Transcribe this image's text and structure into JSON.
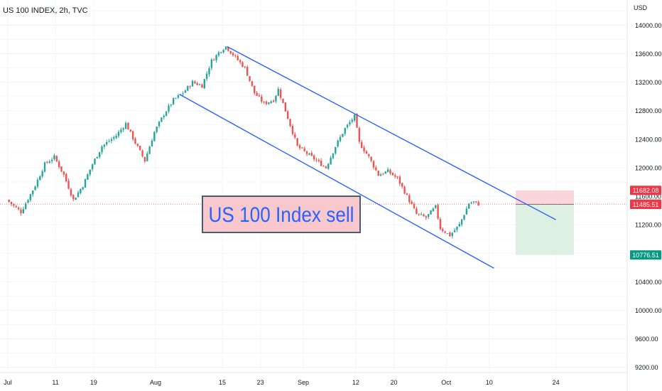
{
  "header": {
    "symbol_title": "US 100 INDEX, 2h, TVC"
  },
  "chart_data": {
    "type": "candlestick",
    "title": "US 100 INDEX, 2h, TVC",
    "currency": "USD",
    "timeframe": "2h",
    "grid": true,
    "y_axis": {
      "range": [
        9000,
        14400
      ],
      "ticks": [
        9200,
        9600,
        10000,
        10400,
        10800,
        11200,
        11600,
        12000,
        12400,
        12800,
        13200,
        13600,
        14000
      ],
      "tick_labels": [
        "9200.00",
        "9600.00",
        "10000.00",
        "10400.00",
        "10800.00",
        "11200.00",
        "11600.00",
        "12000.00",
        "12400.00",
        "12800.00",
        "13200.00",
        "13600.00",
        "14000.00"
      ]
    },
    "x_axis": {
      "tick_labels": [
        "Jul",
        "11",
        "19",
        "Aug",
        "15",
        "23",
        "Sep",
        "12",
        "20",
        "Oct",
        "10",
        "24"
      ]
    },
    "price_path": [
      [
        "Jul 1",
        11550
      ],
      [
        "Jul 4",
        11380
      ],
      [
        "Jul 7",
        11750
      ],
      [
        "Jul 9",
        12050
      ],
      [
        "Jul 11",
        12150
      ],
      [
        "Jul 13",
        11900
      ],
      [
        "Jul 15",
        11550
      ],
      [
        "Jul 17",
        11750
      ],
      [
        "Jul 19",
        12050
      ],
      [
        "Jul 21",
        12300
      ],
      [
        "Jul 24",
        12450
      ],
      [
        "Jul 26",
        12620
      ],
      [
        "Jul 28",
        12350
      ],
      [
        "Jul 30",
        12100
      ],
      [
        "Aug 1",
        12500
      ],
      [
        "Aug 3",
        12750
      ],
      [
        "Aug 5",
        12950
      ],
      [
        "Aug 7",
        13050
      ],
      [
        "Aug 9",
        13200
      ],
      [
        "Aug 11",
        13150
      ],
      [
        "Aug 13",
        13500
      ],
      [
        "Aug 15",
        13650
      ],
      [
        "Aug 16",
        13700
      ],
      [
        "Aug 18",
        13550
      ],
      [
        "Aug 20",
        13400
      ],
      [
        "Aug 22",
        13050
      ],
      [
        "Aug 24",
        12900
      ],
      [
        "Aug 26",
        12950
      ],
      [
        "Aug 27",
        13100
      ],
      [
        "Aug 29",
        12700
      ],
      [
        "Aug 31",
        12300
      ],
      [
        "Sep 2",
        12200
      ],
      [
        "Sep 4",
        12100
      ],
      [
        "Sep 6",
        12000
      ],
      [
        "Sep 8",
        12300
      ],
      [
        "Sep 10",
        12550
      ],
      [
        "Sep 12",
        12720
      ],
      [
        "Sep 13",
        12350
      ],
      [
        "Sep 15",
        12150
      ],
      [
        "Sep 17",
        11900
      ],
      [
        "Sep 19",
        11950
      ],
      [
        "Sep 21",
        11850
      ],
      [
        "Sep 23",
        11600
      ],
      [
        "Sep 25",
        11350
      ],
      [
        "Sep 27",
        11300
      ],
      [
        "Sep 29",
        11450
      ],
      [
        "Sep 30",
        11150
      ],
      [
        "Oct 2",
        11050
      ],
      [
        "Oct 4",
        11200
      ],
      [
        "Oct 6",
        11500
      ],
      [
        "Oct 7",
        11520
      ],
      [
        "Oct 8",
        11490
      ]
    ],
    "channel": {
      "upper_line": [
        [
          "Aug 16",
          13700
        ],
        [
          "Oct 24",
          11270
        ]
      ],
      "lower_line": [
        [
          "Aug 6",
          13030
        ],
        [
          "Oct 11",
          10590
        ]
      ]
    },
    "position": {
      "direction": "short",
      "stop_loss": 11682.08,
      "current_price": 11489.23,
      "entry": 11485.51,
      "take_profit": 10776.51
    },
    "price_labels": [
      {
        "text": "11682.08",
        "value": 11682.08,
        "color": "#f23645"
      },
      {
        "text": "11489.23",
        "value": 11489.23,
        "color": "#5d606b"
      },
      {
        "text": "11485.51",
        "value": 11485.51,
        "color": "#f23645"
      },
      {
        "text": "10776.51",
        "value": 10776.51,
        "color": "#089981"
      }
    ],
    "annotation": {
      "text": "US 100 Index sell"
    },
    "colors": {
      "up": "#26a69a",
      "down": "#ef5350",
      "channel": "#2962ff",
      "stop_zone": "#f8c8cd",
      "target_zone": "#d7eddc",
      "annotation_bg": "#f9c8cc",
      "annotation_text": "#2962ff"
    }
  }
}
